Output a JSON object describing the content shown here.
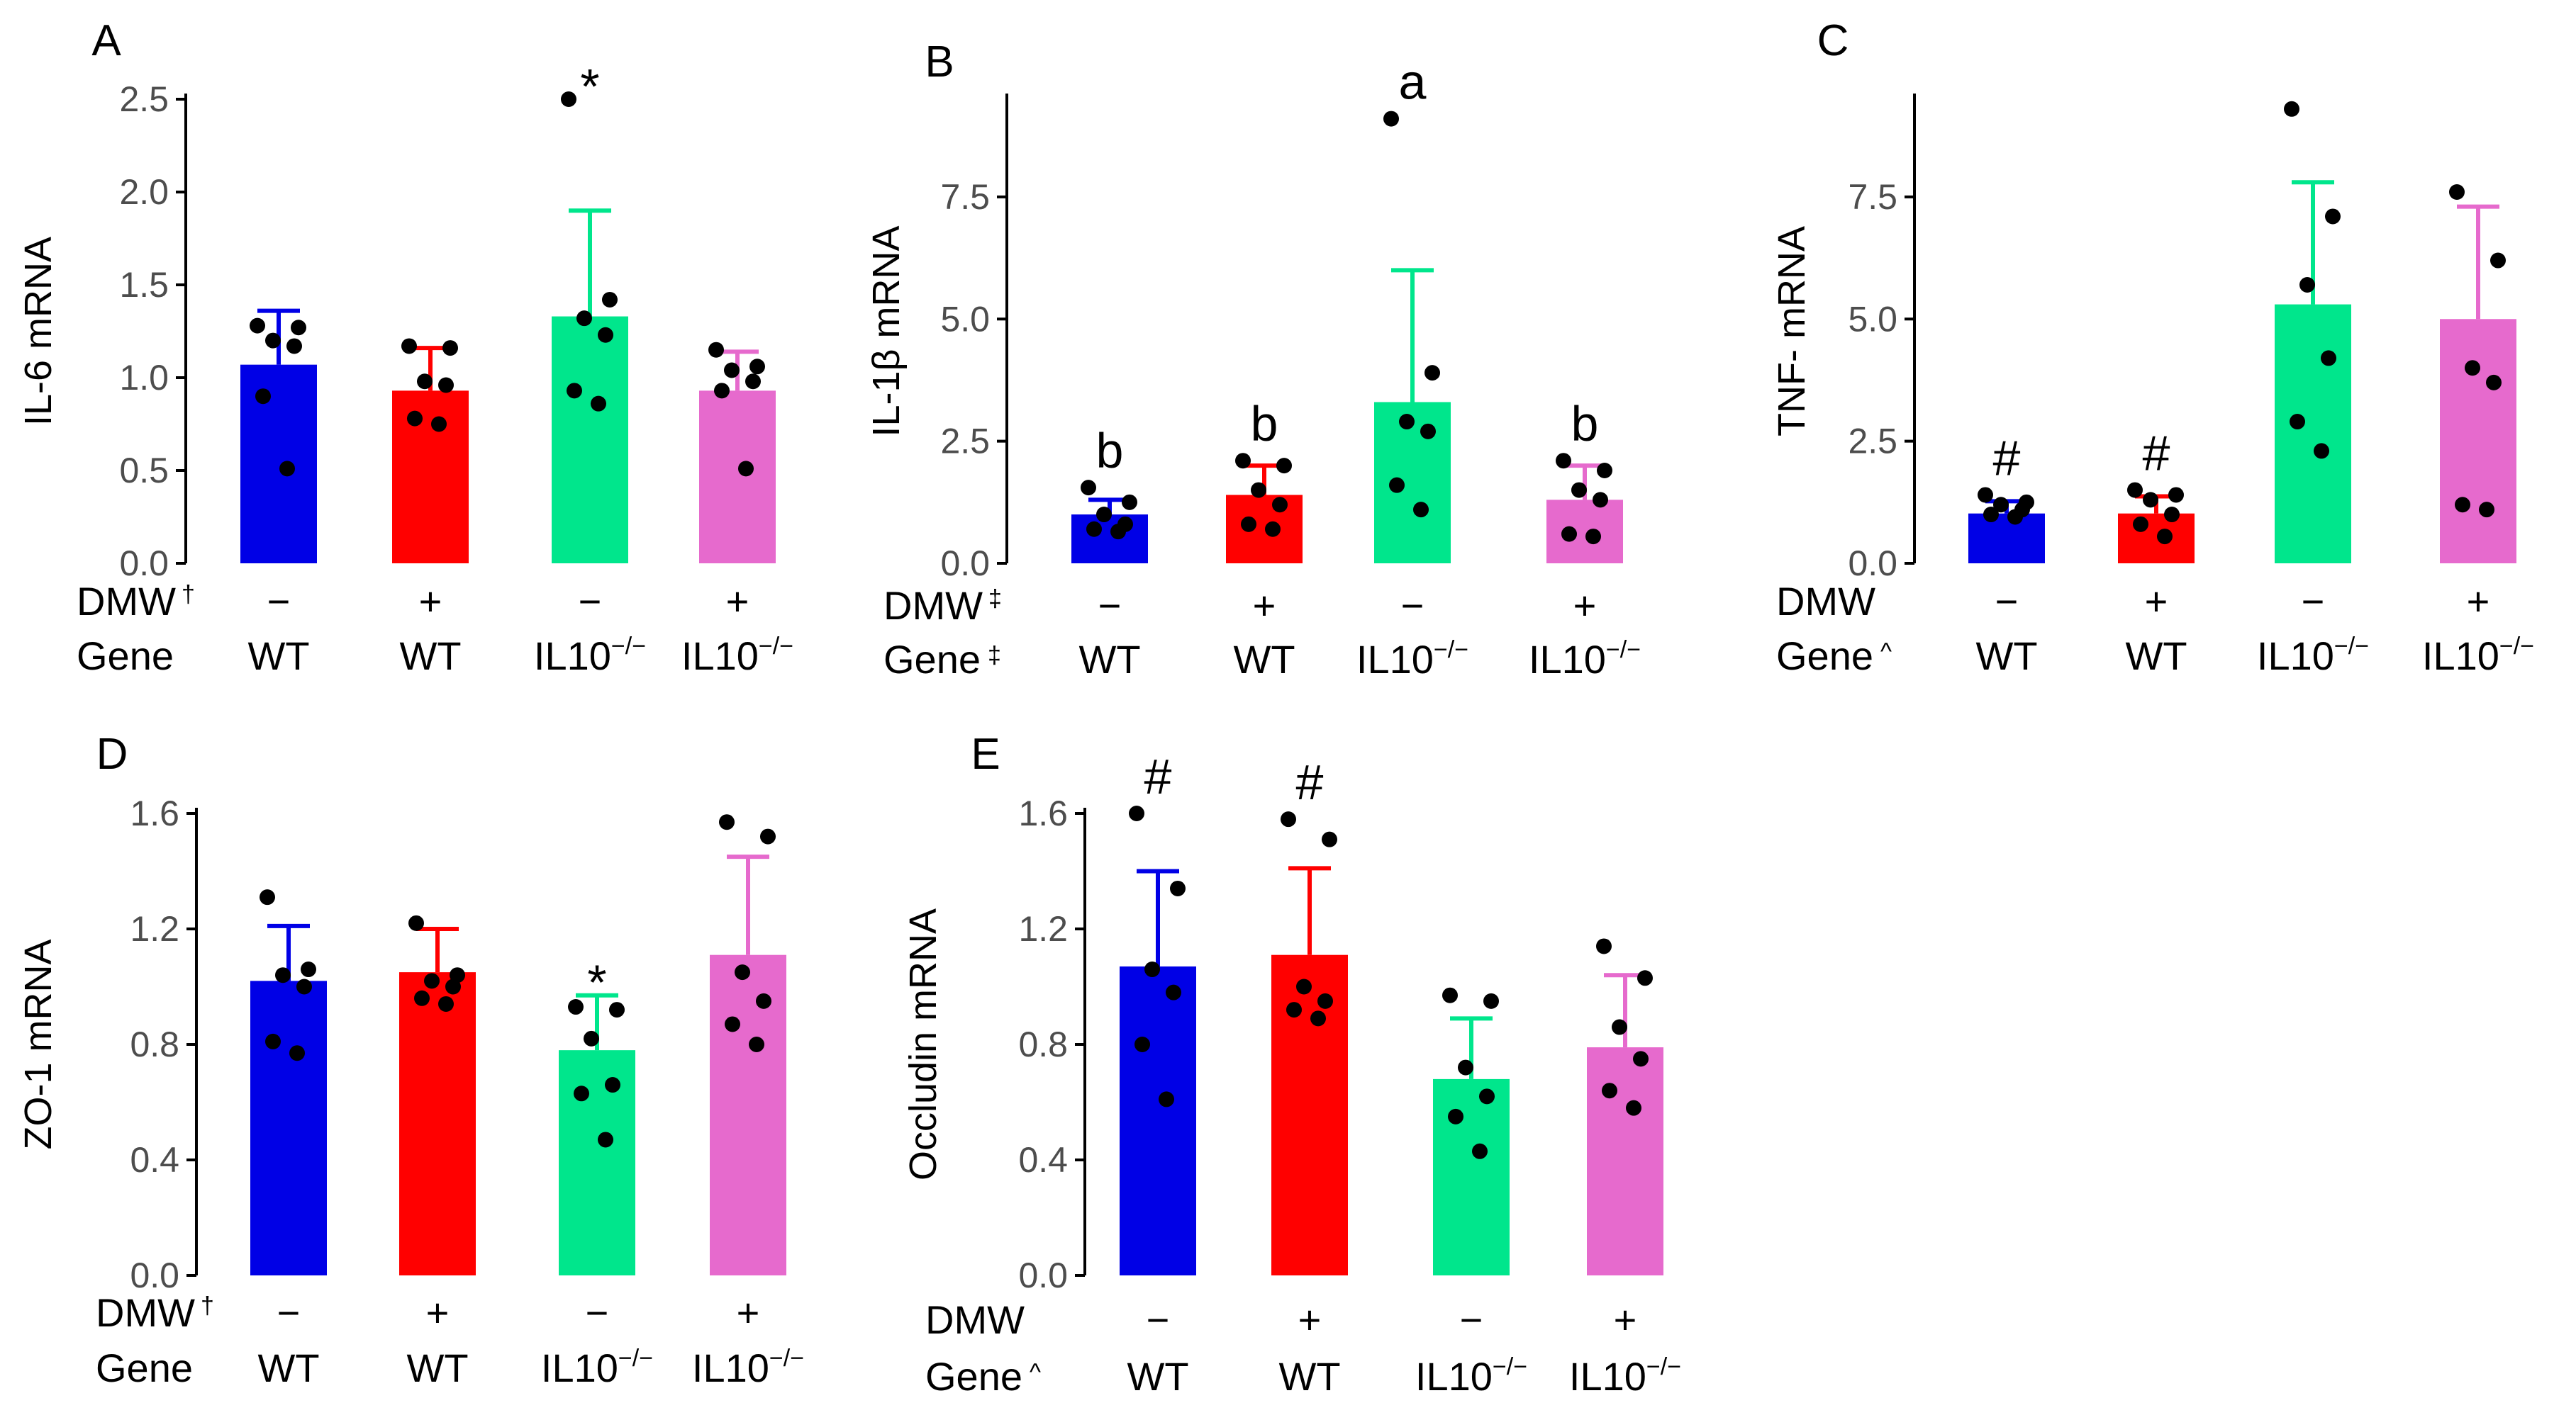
{
  "colors": {
    "groups": [
      "#0000e6",
      "#ff0000",
      "#00e68c",
      "#e66acd"
    ],
    "points": "#000000",
    "axis": "#000000"
  },
  "chart_data": [
    {
      "panel": "A",
      "type": "bar",
      "ylabel": "IL-6 mRNA",
      "ylim": [
        0,
        2.5
      ],
      "yticks": [
        "0.0",
        "0.5",
        "1.0",
        "1.5",
        "2.0",
        "2.5"
      ],
      "categories": [
        "WT DMW-",
        "WT DMW+",
        "IL10-/- DMW-",
        "IL10-/- DMW+"
      ],
      "means": [
        1.07,
        0.93,
        1.33,
        0.93
      ],
      "sd": [
        0.29,
        0.23,
        0.57,
        0.21
      ],
      "points": [
        [
          1.28,
          1.27,
          1.2,
          1.17,
          0.9,
          0.51
        ],
        [
          1.17,
          1.16,
          0.98,
          0.96,
          0.78,
          0.75
        ],
        [
          2.5,
          1.42,
          1.32,
          1.23,
          0.93,
          0.86
        ],
        [
          1.15,
          1.06,
          1.04,
          0.98,
          0.93,
          0.51
        ]
      ],
      "annotations": [
        "",
        "",
        "*",
        ""
      ],
      "row1_label": "DMW",
      "row1_mark": "†",
      "row1_values": [
        "−",
        "+",
        "−",
        "+"
      ],
      "row2_label": "Gene",
      "row2_mark": "",
      "row2_base": [
        "WT",
        "WT",
        "IL10",
        "IL10"
      ],
      "row2_sup": [
        "",
        "",
        "−/−",
        "−/−"
      ]
    },
    {
      "panel": "B",
      "type": "bar",
      "ylabel": "IL-1β mRNA",
      "ylim": [
        0,
        9.5
      ],
      "yticks": [
        "0.0",
        "2.5",
        "5.0",
        "7.5"
      ],
      "categories": [
        "WT DMW-",
        "WT DMW+",
        "IL10-/- DMW-",
        "IL10-/- DMW+"
      ],
      "means": [
        1.0,
        1.4,
        3.3,
        1.3
      ],
      "sd": [
        0.3,
        0.6,
        2.7,
        0.7
      ],
      "points": [
        [
          1.55,
          1.25,
          1.0,
          0.8,
          0.7,
          0.65
        ],
        [
          2.1,
          2.0,
          1.5,
          1.2,
          0.8,
          0.7
        ],
        [
          9.1,
          3.9,
          2.9,
          2.7,
          1.6,
          1.1
        ],
        [
          2.1,
          1.9,
          1.5,
          1.3,
          0.6,
          0.55
        ]
      ],
      "annotations": [
        "b",
        "b",
        "a",
        "b"
      ],
      "row1_label": "DMW",
      "row1_mark": "‡",
      "row1_values": [
        "−",
        "+",
        "−",
        "+"
      ],
      "row2_label": "Gene",
      "row2_mark": "‡",
      "row2_base": [
        "WT",
        "WT",
        "IL10",
        "IL10"
      ],
      "row2_sup": [
        "",
        "",
        "−/−",
        "−/−"
      ]
    },
    {
      "panel": "C",
      "type": "bar",
      "ylabel": "TNF- mRNA",
      "ylim": [
        0,
        9.5
      ],
      "yticks": [
        "0.0",
        "2.5",
        "5.0",
        "7.5"
      ],
      "categories": [
        "WT DMW-",
        "WT DMW+",
        "IL10-/- DMW-",
        "IL10-/- DMW+"
      ],
      "means": [
        1.02,
        1.02,
        5.3,
        5.0
      ],
      "sd": [
        0.25,
        0.35,
        2.5,
        2.3
      ],
      "points": [
        [
          1.4,
          1.25,
          1.2,
          1.1,
          1.0,
          0.95
        ],
        [
          1.5,
          1.4,
          1.3,
          1.0,
          0.8,
          0.55
        ],
        [
          9.3,
          7.1,
          5.7,
          4.2,
          2.9,
          2.3
        ],
        [
          7.6,
          6.2,
          4.0,
          3.7,
          1.2,
          1.1
        ]
      ],
      "annotations": [
        "#",
        "#",
        "",
        ""
      ],
      "row1_label": "DMW",
      "row1_mark": "",
      "row1_values": [
        "−",
        "+",
        "−",
        "+"
      ],
      "row2_label": "Gene",
      "row2_mark": "^",
      "row2_base": [
        "WT",
        "WT",
        "IL10",
        "IL10"
      ],
      "row2_sup": [
        "",
        "",
        "−/−",
        "−/−"
      ]
    },
    {
      "panel": "D",
      "type": "bar",
      "ylabel": "ZO-1 mRNA",
      "ylim": [
        0,
        1.6
      ],
      "yticks": [
        "0.0",
        "0.4",
        "0.8",
        "1.2",
        "1.6"
      ],
      "categories": [
        "WT DMW-",
        "WT DMW+",
        "IL10-/- DMW-",
        "IL10-/- DMW+"
      ],
      "means": [
        1.02,
        1.05,
        0.78,
        1.11
      ],
      "sd": [
        0.19,
        0.15,
        0.19,
        0.34
      ],
      "points": [
        [
          1.31,
          1.06,
          1.04,
          1.0,
          0.81,
          0.77
        ],
        [
          1.22,
          1.04,
          1.02,
          1.0,
          0.96,
          0.94
        ],
        [
          0.93,
          0.92,
          0.82,
          0.66,
          0.63,
          0.47
        ],
        [
          1.57,
          1.52,
          1.05,
          0.95,
          0.87,
          0.8
        ]
      ],
      "annotations": [
        "",
        "",
        "*",
        ""
      ],
      "row1_label": "DMW",
      "row1_mark": "†",
      "row1_values": [
        "−",
        "+",
        "−",
        "+"
      ],
      "row2_label": "Gene",
      "row2_mark": "",
      "row2_base": [
        "WT",
        "WT",
        "IL10",
        "IL10"
      ],
      "row2_sup": [
        "",
        "",
        "−/−",
        "−/−"
      ]
    },
    {
      "panel": "E",
      "type": "bar",
      "ylabel": "Occludin mRNA",
      "ylim": [
        0,
        1.6
      ],
      "yticks": [
        "0.0",
        "0.4",
        "0.8",
        "1.2",
        "1.6"
      ],
      "categories": [
        "WT DMW-",
        "WT DMW+",
        "IL10-/- DMW-",
        "IL10-/- DMW+"
      ],
      "means": [
        1.07,
        1.11,
        0.68,
        0.79
      ],
      "sd": [
        0.33,
        0.3,
        0.21,
        0.25
      ],
      "points": [
        [
          1.6,
          1.34,
          1.06,
          0.98,
          0.8,
          0.61
        ],
        [
          1.58,
          1.51,
          1.0,
          0.95,
          0.92,
          0.89
        ],
        [
          0.97,
          0.95,
          0.72,
          0.62,
          0.55,
          0.43
        ],
        [
          1.14,
          1.03,
          0.86,
          0.75,
          0.64,
          0.58
        ]
      ],
      "annotations": [
        "#",
        "#",
        "",
        ""
      ],
      "row1_label": "DMW",
      "row1_mark": "",
      "row1_values": [
        "−",
        "+",
        "−",
        "+"
      ],
      "row2_label": "Gene",
      "row2_mark": "^",
      "row2_base": [
        "WT",
        "WT",
        "IL10",
        "IL10"
      ],
      "row2_sup": [
        "",
        "",
        "−/−",
        "−/−"
      ]
    }
  ]
}
